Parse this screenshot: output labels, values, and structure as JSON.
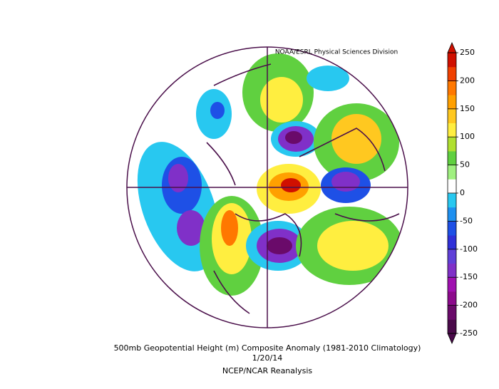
{
  "header": {
    "credit": "NOAA/ESRL Physical Sciences Division"
  },
  "footer": {
    "title": "500mb Geopotential Height (m) Composite Anomaly (1981-2010 Climatology)",
    "date": "1/20/14",
    "source": "NCEP/NCAR Reanalysis"
  },
  "colorbar": {
    "lim": [
      -250,
      250
    ],
    "ticks": [
      250,
      200,
      150,
      100,
      50,
      0,
      -50,
      -100,
      -150,
      -200,
      -250
    ],
    "colors": [
      "#4a0a4a",
      "#6a0a6a",
      "#8c0a8c",
      "#a010b0",
      "#8030c8",
      "#6040d8",
      "#3030d8",
      "#1e50e6",
      "#1e90f0",
      "#28c8f0",
      "#ffffff",
      "#a0f080",
      "#60d040",
      "#b0e030",
      "#ffee40",
      "#ffc820",
      "#ffa000",
      "#ff7800",
      "#f04000",
      "#d01000"
    ]
  }
}
